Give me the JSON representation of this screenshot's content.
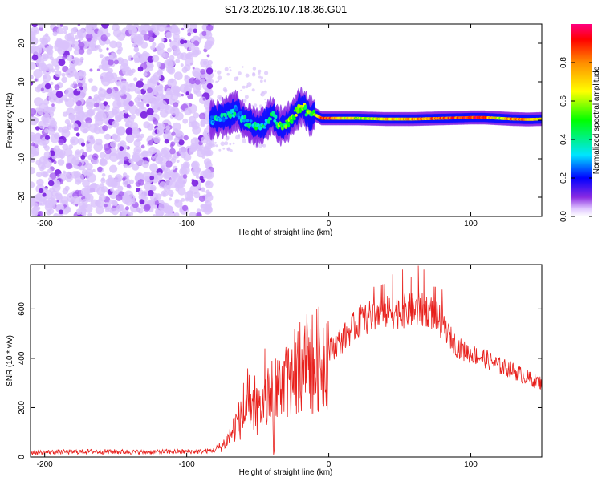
{
  "title": "S173.2026.107.18.36.G01",
  "chart_data": [
    {
      "type": "heatmap",
      "panel": "spectrogram",
      "title": "S173.2026.107.18.36.G01",
      "xlabel": "Height of straight line (km)",
      "ylabel": "Frequency (Hz)",
      "xlim": [
        -210,
        150
      ],
      "ylim": [
        -25,
        25
      ],
      "xticks": [
        -200,
        -100,
        0,
        100
      ],
      "yticks": [
        -20,
        -10,
        0,
        10,
        20
      ],
      "noise_region_x": [
        -210,
        -83
      ],
      "signal_track": {
        "x": [
          -83,
          -75,
          -70,
          -65,
          -60,
          -55,
          -50,
          -45,
          -40,
          -35,
          -30,
          -25,
          -20,
          -17,
          -13,
          -10,
          -5,
          0,
          10,
          20,
          40,
          60,
          80,
          100,
          110,
          120,
          130,
          140,
          150
        ],
        "frequency": [
          0,
          0.5,
          1.5,
          2.5,
          0,
          -1,
          -2,
          -1,
          1.5,
          -1.5,
          -1,
          1,
          3.5,
          3,
          1,
          1.5,
          0.5,
          0.5,
          0.5,
          0.5,
          0.3,
          0.3,
          0.5,
          0.7,
          0.7,
          0.5,
          0.3,
          0.2,
          0.3
        ],
        "amplitude": [
          0.3,
          0.3,
          0.35,
          0.3,
          0.3,
          0.35,
          0.4,
          0.4,
          0.45,
          0.5,
          0.5,
          0.55,
          0.6,
          0.55,
          0.5,
          0.6,
          0.8,
          0.9,
          0.7,
          0.6,
          0.7,
          0.75,
          0.85,
          0.9,
          0.85,
          0.6,
          0.8,
          0.75,
          0.7
        ]
      },
      "colorbar": {
        "label": "Normalized spectral amplitude",
        "range": [
          0,
          1
        ],
        "ticks": [
          0.0,
          0.2,
          0.4,
          0.6,
          0.8
        ]
      }
    },
    {
      "type": "line",
      "panel": "snr",
      "xlabel": "Height of straight line (km)",
      "ylabel": "SNR (10 * v/v)",
      "xlim": [
        -210,
        150
      ],
      "ylim": [
        0,
        780
      ],
      "xticks": [
        -200,
        -100,
        0,
        100
      ],
      "yticks": [
        0,
        200,
        400,
        600
      ],
      "color": "#e8201c",
      "series": [
        {
          "name": "SNR",
          "x": [
            -210,
            -190,
            -170,
            -150,
            -130,
            -110,
            -90,
            -80,
            -75,
            -70,
            -65,
            -60,
            -55,
            -50,
            -45,
            -40,
            -35,
            -30,
            -25,
            -20,
            -15,
            -10,
            -5,
            0,
            10,
            20,
            30,
            40,
            50,
            60,
            70,
            75,
            80,
            85,
            90,
            95,
            100,
            110,
            120,
            130,
            140,
            150
          ],
          "y": [
            18,
            20,
            22,
            22,
            20,
            22,
            22,
            28,
            45,
            80,
            140,
            160,
            170,
            185,
            210,
            240,
            260,
            300,
            330,
            360,
            380,
            390,
            400,
            430,
            480,
            540,
            570,
            585,
            590,
            595,
            595,
            570,
            540,
            490,
            450,
            430,
            420,
            400,
            370,
            350,
            320,
            300
          ]
        }
      ],
      "spikes": {
        "x": [
          -60,
          -52,
          -45,
          -40,
          -32,
          -24,
          -15,
          38,
          45,
          52,
          58,
          63,
          67,
          75
        ],
        "y": [
          300,
          330,
          440,
          390,
          390,
          520,
          450,
          700,
          740,
          760,
          730,
          775,
          760,
          690
        ]
      }
    }
  ]
}
